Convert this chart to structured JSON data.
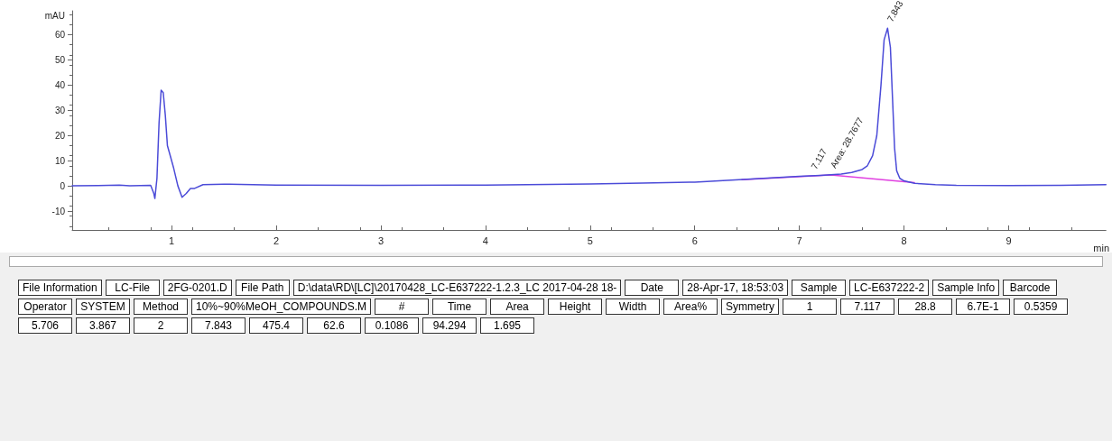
{
  "chart_data": {
    "type": "line",
    "xlabel": "min",
    "ylabel": "mAU",
    "xlim": [
      0.05,
      9.93
    ],
    "xticks": [
      1,
      2,
      3,
      4,
      5,
      6,
      7,
      8,
      9
    ],
    "ylim": [
      -17.5,
      69.5
    ],
    "yticks": [
      -10,
      0,
      10,
      20,
      30,
      40,
      50,
      60
    ],
    "grid": false,
    "marker": "none",
    "line_style": "solid",
    "series": [
      {
        "color": "#4b4bd8",
        "x": [
          0.05,
          0.3,
          0.5,
          0.6,
          0.8,
          0.83,
          0.84,
          0.86,
          0.88,
          0.9,
          0.92,
          0.94,
          0.96,
          0.98,
          1.02,
          1.06,
          1.1,
          1.14,
          1.18,
          1.22,
          1.3,
          1.5,
          2,
          3,
          4,
          5,
          5.5,
          6,
          6.5,
          7,
          7.2,
          7.4,
          7.5,
          7.6,
          7.65,
          7.7,
          7.74,
          7.78,
          7.81,
          7.843,
          7.87,
          7.89,
          7.91,
          7.93,
          7.96,
          8,
          8.1,
          8.3,
          8.5,
          9,
          9.5,
          9.93
        ],
        "values": [
          0,
          0.1,
          0.3,
          0,
          0.2,
          -3,
          -5,
          3,
          25,
          38,
          37,
          28,
          16,
          13,
          7,
          0,
          -4.5,
          -3,
          -1,
          -1,
          0.5,
          0.7,
          0.3,
          0.2,
          0.3,
          0.8,
          1.1,
          1.5,
          2.6,
          3.8,
          4.2,
          4.7,
          5.3,
          6.5,
          8,
          12,
          20,
          40,
          58,
          62.6,
          55,
          35,
          15,
          6,
          3,
          2,
          1,
          0.5,
          0.2,
          0.1,
          0.2,
          0.5
        ]
      },
      {
        "type": "line",
        "color": "#e040e0",
        "x": [
          6.45,
          7.3,
          8.1
        ],
        "values": [
          2.5,
          4.3,
          1.3
        ]
      }
    ],
    "annotations": [
      {
        "text": "7.117",
        "x": 7.117,
        "y": 4.1
      },
      {
        "text": "Area: 28.7677",
        "x": 7.3,
        "y": 4.5
      },
      {
        "text": "7.843",
        "x": 7.843,
        "y": 62.6
      },
      "File Information",
      "LC-File",
      "2FG-0201.D",
      "File Path",
      "D:\\data\\RD\\[LC]\\20170428_LC-E637222-1.2.3_LC 2017-04-28 18-",
      "Date",
      "28-Apr-17, 18:53:03",
      "Sample",
      "LC-E637222-2",
      "Sample Info",
      "Barcode",
      "Operator",
      "SYSTEM",
      "Method",
      "10%~90%MeOH_COMPOUNDS.M",
      "#",
      "Time",
      "Area",
      "Height",
      "Width",
      "Area%",
      "Symmetry",
      "1",
      "7.117",
      "28.8",
      "6.7E-1",
      "0.5359",
      "5.706",
      "3.867",
      "2",
      "7.843",
      "475.4",
      "62.6",
      "0.1086",
      "94.294",
      "1.695"
    ]
  }
}
